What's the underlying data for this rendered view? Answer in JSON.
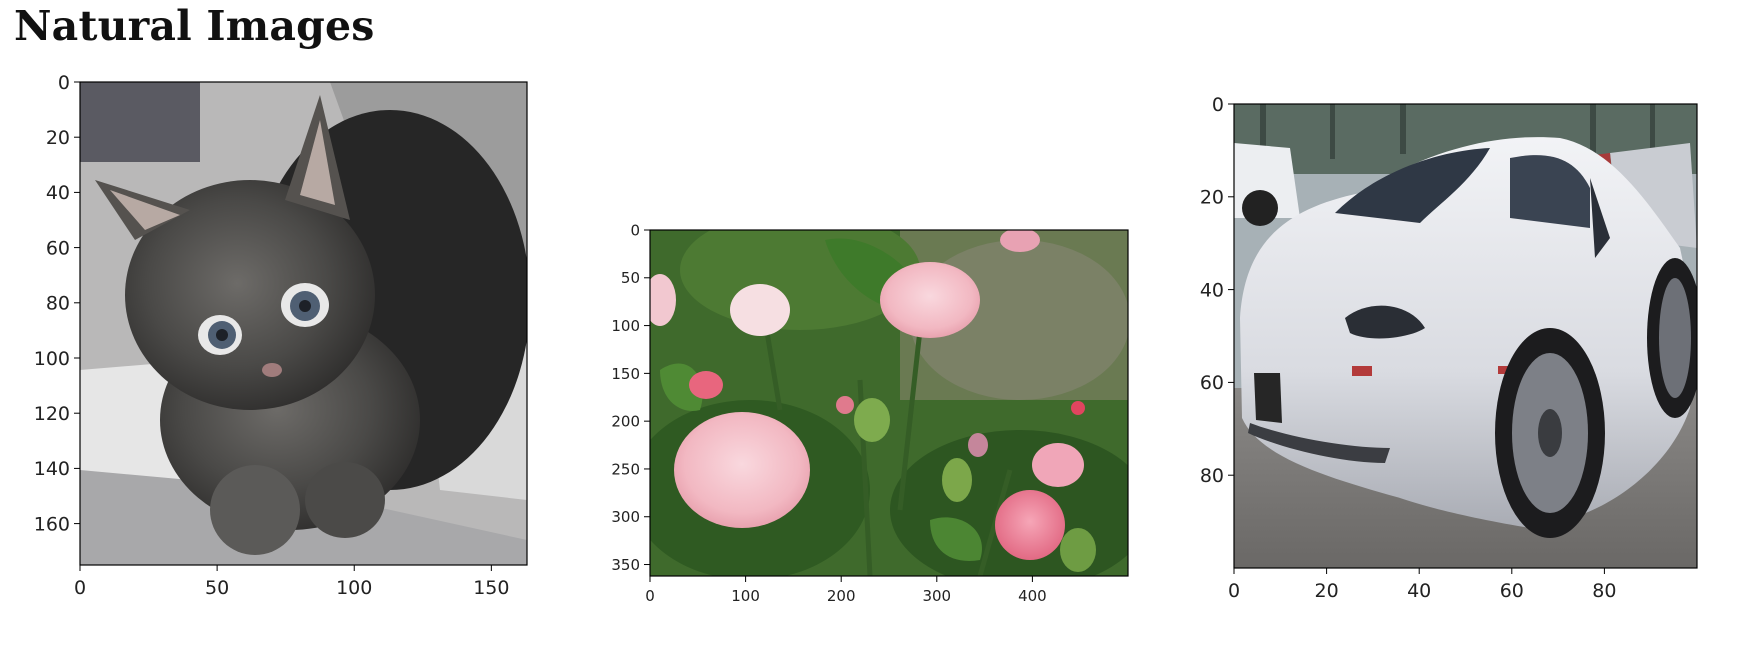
{
  "page": {
    "title": "Natural Images"
  },
  "images": [
    {
      "subject": "kitten",
      "image_size": {
        "width": 163,
        "height": 175
      },
      "x_ticks": [
        "0",
        "50",
        "100",
        "150"
      ],
      "y_ticks": [
        "0",
        "20",
        "40",
        "60",
        "80",
        "100",
        "120",
        "140",
        "160"
      ]
    },
    {
      "subject": "roses",
      "image_size": {
        "width": 500,
        "height": 362
      },
      "x_ticks": [
        "0",
        "100",
        "200",
        "300",
        "400"
      ],
      "y_ticks": [
        "0",
        "50",
        "100",
        "150",
        "200",
        "250",
        "300",
        "350"
      ]
    },
    {
      "subject": "white sports car",
      "image_size": {
        "width": 100,
        "height": 100
      },
      "x_ticks": [
        "0",
        "20",
        "40",
        "60",
        "80"
      ],
      "y_ticks": [
        "0",
        "20",
        "40",
        "60",
        "80"
      ]
    }
  ]
}
